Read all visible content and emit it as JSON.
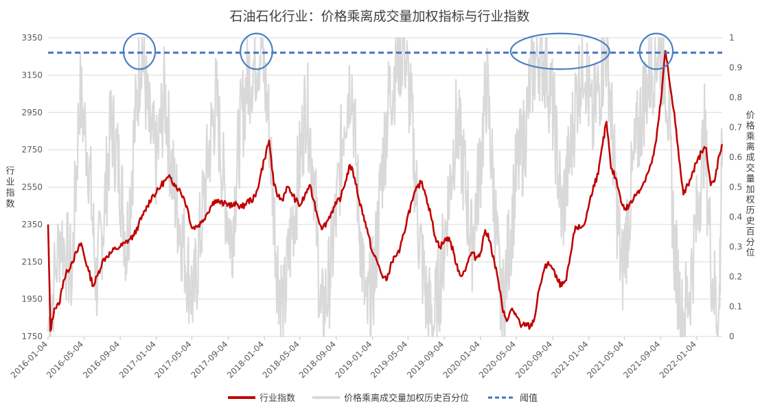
{
  "chart_data": {
    "type": "line",
    "title": "石油石化行业：价格乘离成交量加权指标与行业指数",
    "ylabel_left": [
      "行",
      "业",
      "指",
      "数"
    ],
    "ylabel_right": [
      "价",
      "格",
      "乘",
      "离",
      "成",
      "交",
      "量",
      "加",
      "权",
      "历",
      "史",
      "百",
      "分",
      "位"
    ],
    "ylim_left": [
      1750,
      3350
    ],
    "yticks_left": [
      "1750",
      "1950",
      "2150",
      "2350",
      "2550",
      "2750",
      "2950",
      "3150",
      "3350"
    ],
    "ylim_right": [
      0,
      1
    ],
    "yticks_right": [
      "0",
      "0.1",
      "0.2",
      "0.3",
      "0.4",
      "0.5",
      "0.6",
      "0.7",
      "0.8",
      "0.9",
      "1"
    ],
    "x_range": [
      "2016-01-04",
      "2022-03-31"
    ],
    "xticks": [
      "2016-01-04",
      "2016-05-04",
      "2016-09-04",
      "2017-01-04",
      "2017-05-04",
      "2017-09-04",
      "2018-01-04",
      "2018-05-04",
      "2018-09-04",
      "2019-01-04",
      "2019-05-04",
      "2019-09-04",
      "2020-01-04",
      "2020-05-04",
      "2020-09-04",
      "2021-01-04",
      "2021-05-04",
      "2021-09-04",
      "2022-01-04"
    ],
    "threshold": 0.95,
    "grid": true,
    "legend_position": "bottom",
    "colors": {
      "index": "#c00000",
      "index_light": "#d98080",
      "percentile": "#d9d9d9",
      "threshold": "#4472c4",
      "highlight": "#4a7fc1"
    },
    "series": [
      {
        "name": "行业指数",
        "axis": "left",
        "points": [
          [
            "2016-01-04",
            2350
          ],
          [
            "2016-01-12",
            1780
          ],
          [
            "2016-01-25",
            1900
          ],
          [
            "2016-02-10",
            1920
          ],
          [
            "2016-02-25",
            2050
          ],
          [
            "2016-03-10",
            2100
          ],
          [
            "2016-03-25",
            2150
          ],
          [
            "2016-04-10",
            2200
          ],
          [
            "2016-04-25",
            2250
          ],
          [
            "2016-05-04",
            2190
          ],
          [
            "2016-05-20",
            2100
          ],
          [
            "2016-06-05",
            2020
          ],
          [
            "2016-06-20",
            2080
          ],
          [
            "2016-07-05",
            2150
          ],
          [
            "2016-07-20",
            2180
          ],
          [
            "2016-08-05",
            2200
          ],
          [
            "2016-08-20",
            2220
          ],
          [
            "2016-09-04",
            2230
          ],
          [
            "2016-09-20",
            2250
          ],
          [
            "2016-10-05",
            2270
          ],
          [
            "2016-10-20",
            2290
          ],
          [
            "2016-11-05",
            2350
          ],
          [
            "2016-11-20",
            2400
          ],
          [
            "2016-12-05",
            2450
          ],
          [
            "2016-12-20",
            2500
          ],
          [
            "2017-01-04",
            2520
          ],
          [
            "2017-01-20",
            2560
          ],
          [
            "2017-02-05",
            2590
          ],
          [
            "2017-02-20",
            2600
          ],
          [
            "2017-03-05",
            2570
          ],
          [
            "2017-03-20",
            2540
          ],
          [
            "2017-04-05",
            2500
          ],
          [
            "2017-04-20",
            2430
          ],
          [
            "2017-05-04",
            2330
          ],
          [
            "2017-05-20",
            2340
          ],
          [
            "2017-06-05",
            2360
          ],
          [
            "2017-06-20",
            2400
          ],
          [
            "2017-07-05",
            2440
          ],
          [
            "2017-07-20",
            2480
          ],
          [
            "2017-08-05",
            2470
          ],
          [
            "2017-08-20",
            2460
          ],
          [
            "2017-09-04",
            2460
          ],
          [
            "2017-09-20",
            2450
          ],
          [
            "2017-10-05",
            2460
          ],
          [
            "2017-10-20",
            2440
          ],
          [
            "2017-11-05",
            2470
          ],
          [
            "2017-11-20",
            2480
          ],
          [
            "2017-12-05",
            2500
          ],
          [
            "2017-12-20",
            2600
          ],
          [
            "2018-01-04",
            2700
          ],
          [
            "2018-01-20",
            2800
          ],
          [
            "2018-02-05",
            2560
          ],
          [
            "2018-02-20",
            2500
          ],
          [
            "2018-03-05",
            2480
          ],
          [
            "2018-03-20",
            2550
          ],
          [
            "2018-04-05",
            2520
          ],
          [
            "2018-04-20",
            2480
          ],
          [
            "2018-05-04",
            2450
          ],
          [
            "2018-05-20",
            2500
          ],
          [
            "2018-06-05",
            2560
          ],
          [
            "2018-06-20",
            2480
          ],
          [
            "2018-07-05",
            2380
          ],
          [
            "2018-07-20",
            2330
          ],
          [
            "2018-08-05",
            2370
          ],
          [
            "2018-08-20",
            2420
          ],
          [
            "2018-09-04",
            2460
          ],
          [
            "2018-09-20",
            2500
          ],
          [
            "2018-10-05",
            2580
          ],
          [
            "2018-10-20",
            2670
          ],
          [
            "2018-11-05",
            2600
          ],
          [
            "2018-11-20",
            2480
          ],
          [
            "2018-12-05",
            2400
          ],
          [
            "2018-12-20",
            2300
          ],
          [
            "2019-01-04",
            2200
          ],
          [
            "2019-01-20",
            2150
          ],
          [
            "2019-02-05",
            2080
          ],
          [
            "2019-02-20",
            2050
          ],
          [
            "2019-03-05",
            2120
          ],
          [
            "2019-03-20",
            2180
          ],
          [
            "2019-04-05",
            2200
          ],
          [
            "2019-04-20",
            2300
          ],
          [
            "2019-05-04",
            2400
          ],
          [
            "2019-05-20",
            2480
          ],
          [
            "2019-06-05",
            2550
          ],
          [
            "2019-06-20",
            2580
          ],
          [
            "2019-07-05",
            2500
          ],
          [
            "2019-07-20",
            2400
          ],
          [
            "2019-08-05",
            2280
          ],
          [
            "2019-08-20",
            2230
          ],
          [
            "2019-09-04",
            2260
          ],
          [
            "2019-09-20",
            2280
          ],
          [
            "2019-10-05",
            2200
          ],
          [
            "2019-10-20",
            2100
          ],
          [
            "2019-11-05",
            2080
          ],
          [
            "2019-11-20",
            2140
          ],
          [
            "2019-12-05",
            2200
          ],
          [
            "2019-12-20",
            2170
          ],
          [
            "2020-01-04",
            2200
          ],
          [
            "2020-01-20",
            2320
          ],
          [
            "2020-02-05",
            2260
          ],
          [
            "2020-02-20",
            2150
          ],
          [
            "2020-03-05",
            2040
          ],
          [
            "2020-03-20",
            1880
          ],
          [
            "2020-04-05",
            1840
          ],
          [
            "2020-04-20",
            1900
          ],
          [
            "2020-05-04",
            1860
          ],
          [
            "2020-05-20",
            1800
          ],
          [
            "2020-06-05",
            1820
          ],
          [
            "2020-06-20",
            1800
          ],
          [
            "2020-07-05",
            1850
          ],
          [
            "2020-07-20",
            2000
          ],
          [
            "2020-08-05",
            2100
          ],
          [
            "2020-08-20",
            2150
          ],
          [
            "2020-09-04",
            2110
          ],
          [
            "2020-09-20",
            2050
          ],
          [
            "2020-10-05",
            2020
          ],
          [
            "2020-10-20",
            2050
          ],
          [
            "2020-11-05",
            2200
          ],
          [
            "2020-11-20",
            2340
          ],
          [
            "2020-12-05",
            2330
          ],
          [
            "2020-12-20",
            2350
          ],
          [
            "2021-01-04",
            2450
          ],
          [
            "2021-01-20",
            2560
          ],
          [
            "2021-02-05",
            2620
          ],
          [
            "2021-02-20",
            2780
          ],
          [
            "2021-03-05",
            2900
          ],
          [
            "2021-03-20",
            2650
          ],
          [
            "2021-04-05",
            2600
          ],
          [
            "2021-04-20",
            2500
          ],
          [
            "2021-05-04",
            2430
          ],
          [
            "2021-05-20",
            2450
          ],
          [
            "2021-06-05",
            2490
          ],
          [
            "2021-06-20",
            2530
          ],
          [
            "2021-07-05",
            2560
          ],
          [
            "2021-07-20",
            2620
          ],
          [
            "2021-08-05",
            2680
          ],
          [
            "2021-08-20",
            2800
          ],
          [
            "2021-09-04",
            3000
          ],
          [
            "2021-09-20",
            3280
          ],
          [
            "2021-10-05",
            3100
          ],
          [
            "2021-10-20",
            2950
          ],
          [
            "2021-11-05",
            2700
          ],
          [
            "2021-11-20",
            2510
          ],
          [
            "2021-12-05",
            2560
          ],
          [
            "2021-12-20",
            2630
          ],
          [
            "2022-01-04",
            2680
          ],
          [
            "2022-01-20",
            2740
          ],
          [
            "2022-02-05",
            2760
          ],
          [
            "2022-02-20",
            2560
          ],
          [
            "2022-03-05",
            2580
          ],
          [
            "2022-03-20",
            2720
          ],
          [
            "2022-03-31",
            2780
          ]
        ]
      },
      {
        "name": "价格乘离成交量加权历史百分位",
        "axis": "right",
        "points": [
          [
            "2016-01-04",
            0.02
          ],
          [
            "2016-02-15",
            0.35
          ],
          [
            "2016-03-25",
            0.2
          ],
          [
            "2016-04-20",
            0.82
          ],
          [
            "2016-05-20",
            0.6
          ],
          [
            "2016-06-15",
            0.18
          ],
          [
            "2016-07-10",
            0.4
          ],
          [
            "2016-08-05",
            0.72
          ],
          [
            "2016-09-01",
            0.55
          ],
          [
            "2016-09-25",
            0.3
          ],
          [
            "2016-10-20",
            0.66
          ],
          [
            "2016-11-15",
            0.99
          ],
          [
            "2016-12-10",
            0.7
          ],
          [
            "2017-01-05",
            0.58
          ],
          [
            "2017-02-01",
            0.82
          ],
          [
            "2017-02-25",
            0.55
          ],
          [
            "2017-03-20",
            0.4
          ],
          [
            "2017-04-15",
            0.25
          ],
          [
            "2017-05-10",
            0.12
          ],
          [
            "2017-06-05",
            0.38
          ],
          [
            "2017-07-01",
            0.62
          ],
          [
            "2017-07-25",
            0.8
          ],
          [
            "2017-08-20",
            0.5
          ],
          [
            "2017-09-15",
            0.32
          ],
          [
            "2017-10-10",
            0.65
          ],
          [
            "2017-11-05",
            0.85
          ],
          [
            "2017-12-01",
            0.92
          ],
          [
            "2017-12-25",
            0.98
          ],
          [
            "2018-01-20",
            0.7
          ],
          [
            "2018-02-15",
            0.25
          ],
          [
            "2018-03-10",
            0.08
          ],
          [
            "2018-04-05",
            0.35
          ],
          [
            "2018-05-01",
            0.55
          ],
          [
            "2018-05-25",
            0.8
          ],
          [
            "2018-06-20",
            0.55
          ],
          [
            "2018-07-15",
            0.05
          ],
          [
            "2018-08-10",
            0.18
          ],
          [
            "2018-09-05",
            0.42
          ],
          [
            "2018-10-01",
            0.75
          ],
          [
            "2018-10-25",
            0.88
          ],
          [
            "2018-11-20",
            0.4
          ],
          [
            "2018-12-15",
            0.06
          ],
          [
            "2019-01-10",
            0.2
          ],
          [
            "2019-02-05",
            0.55
          ],
          [
            "2019-03-01",
            0.8
          ],
          [
            "2019-03-25",
            0.9
          ],
          [
            "2019-04-20",
            0.99
          ],
          [
            "2019-05-15",
            0.75
          ],
          [
            "2019-06-10",
            0.35
          ],
          [
            "2019-07-05",
            0.12
          ],
          [
            "2019-07-30",
            0.04
          ],
          [
            "2019-08-25",
            0.22
          ],
          [
            "2019-09-20",
            0.48
          ],
          [
            "2019-10-15",
            0.72
          ],
          [
            "2019-11-10",
            0.55
          ],
          [
            "2019-12-05",
            0.3
          ],
          [
            "2020-01-01",
            0.55
          ],
          [
            "2020-01-25",
            0.85
          ],
          [
            "2020-02-20",
            0.45
          ],
          [
            "2020-03-15",
            0.06
          ],
          [
            "2020-04-10",
            0.3
          ],
          [
            "2020-05-05",
            0.55
          ],
          [
            "2020-05-30",
            0.65
          ],
          [
            "2020-06-25",
            0.88
          ],
          [
            "2020-07-20",
            0.96
          ],
          [
            "2020-08-15",
            0.9
          ],
          [
            "2020-09-10",
            0.72
          ],
          [
            "2020-10-05",
            0.4
          ],
          [
            "2020-10-30",
            0.58
          ],
          [
            "2020-11-25",
            0.82
          ],
          [
            "2020-12-20",
            0.95
          ],
          [
            "2021-01-15",
            0.7
          ],
          [
            "2021-02-10",
            0.85
          ],
          [
            "2021-03-07",
            0.98
          ],
          [
            "2021-04-01",
            0.55
          ],
          [
            "2021-04-25",
            0.2
          ],
          [
            "2021-05-20",
            0.42
          ],
          [
            "2021-06-15",
            0.65
          ],
          [
            "2021-07-10",
            0.8
          ],
          [
            "2021-08-05",
            0.9
          ],
          [
            "2021-08-30",
            0.98
          ],
          [
            "2021-09-25",
            0.85
          ],
          [
            "2021-10-20",
            0.3
          ],
          [
            "2021-11-15",
            0.05
          ],
          [
            "2021-12-10",
            0.15
          ],
          [
            "2022-01-05",
            0.4
          ],
          [
            "2022-01-30",
            0.68
          ],
          [
            "2022-02-25",
            0.2
          ],
          [
            "2022-03-20",
            0.05
          ],
          [
            "2022-03-31",
            0.66
          ]
        ]
      },
      {
        "name": "阈值",
        "axis": "right",
        "constant": 0.95
      }
    ],
    "highlights": [
      {
        "from": "2016-09-15",
        "to": "2016-12-31"
      },
      {
        "from": "2017-10-15",
        "to": "2018-01-31"
      },
      {
        "from": "2020-04-15",
        "to": "2021-03-15"
      },
      {
        "from": "2021-06-25",
        "to": "2021-10-15"
      }
    ]
  }
}
